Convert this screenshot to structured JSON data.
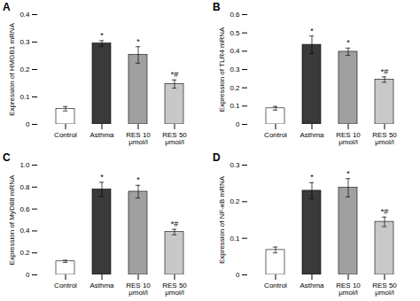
{
  "chart_data": [
    {
      "type": "bar",
      "title": "A",
      "ylabel": "Expression of HMGB1 mRNA",
      "categories": [
        "Control",
        "Asthma",
        "RES 10\nμmol/l",
        "RES 50\nμmol/l"
      ],
      "values": [
        0.057,
        0.295,
        0.253,
        0.147
      ],
      "errors": [
        0.008,
        0.01,
        0.03,
        0.015
      ],
      "annotations": [
        null,
        "*",
        "*",
        "*#"
      ],
      "colors": [
        "#ffffff",
        "#3a3a3a",
        "#a0a0a0",
        "#c8c8c8"
      ],
      "ylim": [
        0,
        0.4
      ],
      "yticks": [
        0,
        0.1,
        0.2,
        0.3,
        0.4
      ]
    },
    {
      "type": "bar",
      "title": "B",
      "ylabel": "Expression of TLR4 mRNA",
      "categories": [
        "Control",
        "Asthma",
        "RES 10\nμmol/l",
        "RES 50\nμmol/l"
      ],
      "values": [
        0.088,
        0.435,
        0.397,
        0.245
      ],
      "errors": [
        0.01,
        0.048,
        0.02,
        0.015
      ],
      "annotations": [
        null,
        "*",
        "*",
        "*#"
      ],
      "colors": [
        "#ffffff",
        "#3a3a3a",
        "#a0a0a0",
        "#c8c8c8"
      ],
      "ylim": [
        0,
        0.6
      ],
      "yticks": [
        0,
        0.1,
        0.2,
        0.3,
        0.4,
        0.5,
        0.6
      ]
    },
    {
      "type": "bar",
      "title": "C",
      "ylabel": "Expression of MyD88 mRNA",
      "categories": [
        "Control",
        "Asthma",
        "RES 10\nμmol/l",
        "RES 50\nμmol/l"
      ],
      "values": [
        0.123,
        0.778,
        0.758,
        0.39
      ],
      "errors": [
        0.01,
        0.065,
        0.058,
        0.025
      ],
      "annotations": [
        null,
        "*",
        "*",
        "*#"
      ],
      "colors": [
        "#ffffff",
        "#3a3a3a",
        "#a0a0a0",
        "#c8c8c8"
      ],
      "ylim": [
        0,
        1.0
      ],
      "yticks": [
        0,
        0.2,
        0.4,
        0.6,
        0.8,
        {
          "value": 1.0,
          "label": "1.0"
        }
      ]
    },
    {
      "type": "bar",
      "title": "D",
      "ylabel": "Expression of NF-κB mRNA",
      "categories": [
        "Control",
        "Asthma",
        "RES 10\nμmol/l",
        "RES 50\nμmol/l"
      ],
      "values": [
        0.068,
        0.23,
        0.238,
        0.145
      ],
      "errors": [
        0.008,
        0.022,
        0.025,
        0.013
      ],
      "annotations": [
        null,
        "*",
        "*",
        "*#"
      ],
      "colors": [
        "#ffffff",
        "#3a3a3a",
        "#a0a0a0",
        "#c8c8c8"
      ],
      "ylim": [
        0,
        0.3
      ],
      "yticks": [
        0,
        0.1,
        0.2,
        0.3
      ]
    }
  ]
}
